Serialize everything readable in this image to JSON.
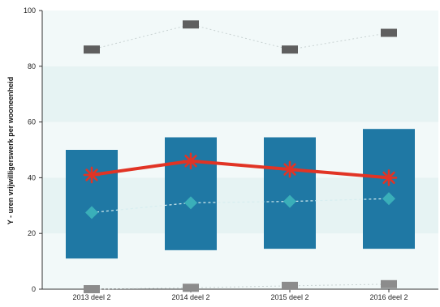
{
  "chart_data": {
    "type": "bar",
    "ylabel": "Y - uren vrijwilligerswerk per wooneenheid",
    "ylim": [
      0,
      100
    ],
    "yticks": [
      0,
      20,
      40,
      60,
      80,
      100
    ],
    "grid": false,
    "background_bands": [
      {
        "from": 0,
        "to": 20,
        "color": "#f2f9f9"
      },
      {
        "from": 20,
        "to": 40,
        "color": "#e6f3f3"
      },
      {
        "from": 40,
        "to": 60,
        "color": "#f2f9f9"
      },
      {
        "from": 60,
        "to": 80,
        "color": "#e6f3f3"
      },
      {
        "from": 80,
        "to": 100,
        "color": "#f2f9f9"
      }
    ],
    "categories": [
      "2013 deel 2",
      "2014 deel 2",
      "2015 deel 2",
      "2016 deel 2"
    ],
    "range_bars": {
      "low": [
        11,
        14,
        14.5,
        14.5
      ],
      "high": [
        50,
        54.5,
        54.5,
        57.5
      ],
      "color": "#1f78a4"
    },
    "series": [
      {
        "kind": "upper-marker",
        "marker": "square",
        "color": "#5f5f5f",
        "values": [
          86,
          95,
          86,
          92
        ]
      },
      {
        "kind": "lower-marker",
        "marker": "square",
        "color": "#8c8c8c",
        "values": [
          0,
          0.5,
          1.2,
          1.8
        ]
      },
      {
        "kind": "dashed-line",
        "marker": "diamond",
        "color": "#3aafb9",
        "values": [
          27.5,
          31,
          31.5,
          32.5
        ]
      },
      {
        "kind": "bold-line",
        "marker": "asterisk",
        "color": "#e13425",
        "values": [
          41,
          46,
          43,
          40
        ]
      }
    ]
  }
}
